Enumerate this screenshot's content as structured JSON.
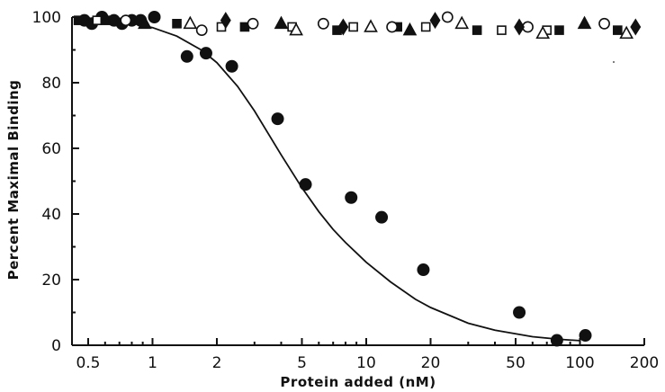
{
  "chart_data": {
    "type": "scatter",
    "title": "",
    "xlabel": "Protein added (nM)",
    "ylabel": "Percent Maximal Binding",
    "x_scale": "log",
    "xlim": [
      0.42,
      200
    ],
    "ylim": [
      0,
      100
    ],
    "x_ticks": [
      0.5,
      1,
      2,
      5,
      10,
      20,
      50,
      100,
      200
    ],
    "x_tick_labels": [
      "0.5",
      "1",
      "2",
      "5",
      "10",
      "20",
      "50",
      "100",
      "200"
    ],
    "y_ticks": [
      0,
      20,
      40,
      60,
      80,
      100
    ],
    "y_tick_labels": [
      "0",
      "20",
      "40",
      "60",
      "80",
      "100"
    ],
    "grid": false,
    "legend": "none",
    "colors": {
      "ink": "#111111"
    },
    "series": [
      {
        "marker": "filled-circle",
        "x": [
          0.48,
          0.52,
          0.58,
          0.66,
          0.72,
          0.8,
          0.88,
          1.02,
          1.45,
          1.78,
          2.35,
          3.85,
          5.2,
          8.5,
          11.8,
          18.5,
          52,
          78,
          106
        ],
        "y": [
          99,
          98,
          100,
          99,
          98,
          99,
          99,
          100,
          88,
          89,
          85,
          69,
          49,
          45,
          39,
          23,
          10,
          1.5,
          3
        ]
      },
      {
        "marker": "filled-square",
        "x": [
          0.45,
          0.6,
          1.3,
          2.7,
          7.3,
          14,
          33,
          80,
          150
        ],
        "y": [
          99,
          99,
          98,
          97,
          96,
          97,
          96,
          96,
          96
        ]
      },
      {
        "marker": "open-square",
        "x": [
          0.55,
          2.1,
          4.5,
          8.7,
          19,
          43,
          70
        ],
        "y": [
          99,
          97,
          97,
          97,
          97,
          96,
          96
        ]
      },
      {
        "marker": "filled-triangle",
        "x": [
          0.92,
          4.0,
          16,
          105
        ],
        "y": [
          98,
          98,
          96,
          98
        ]
      },
      {
        "marker": "open-triangle",
        "x": [
          1.5,
          4.7,
          10.5,
          28,
          67,
          165
        ],
        "y": [
          98,
          96,
          97,
          98,
          95,
          95
        ]
      },
      {
        "marker": "open-circle",
        "x": [
          0.75,
          1.7,
          2.95,
          6.3,
          13.2,
          24,
          57,
          130
        ],
        "y": [
          99,
          96,
          98,
          98,
          97,
          100,
          97,
          98
        ]
      },
      {
        "marker": "filled-diamond",
        "x": [
          2.2,
          7.8,
          21,
          52,
          182
        ],
        "y": [
          99,
          97,
          99,
          97,
          97
        ]
      }
    ],
    "fit_curve": {
      "x": [
        0.45,
        0.6,
        0.8,
        1.0,
        1.3,
        1.7,
        2.0,
        2.5,
        3.0,
        4.0,
        5.0,
        6.0,
        7.0,
        8.0,
        10.0,
        13.0,
        17.0,
        20.0,
        30.0,
        40.0,
        60.0,
        80.0,
        100.0
      ],
      "y": [
        99.6,
        99.1,
        98.2,
        96.8,
        94.2,
        89.9,
        86.1,
        78.9,
        71.4,
        58.0,
        48.0,
        40.7,
        35.3,
        31.3,
        25.3,
        19.3,
        14.0,
        11.5,
        6.7,
        4.6,
        2.6,
        1.8,
        1.4
      ]
    }
  }
}
